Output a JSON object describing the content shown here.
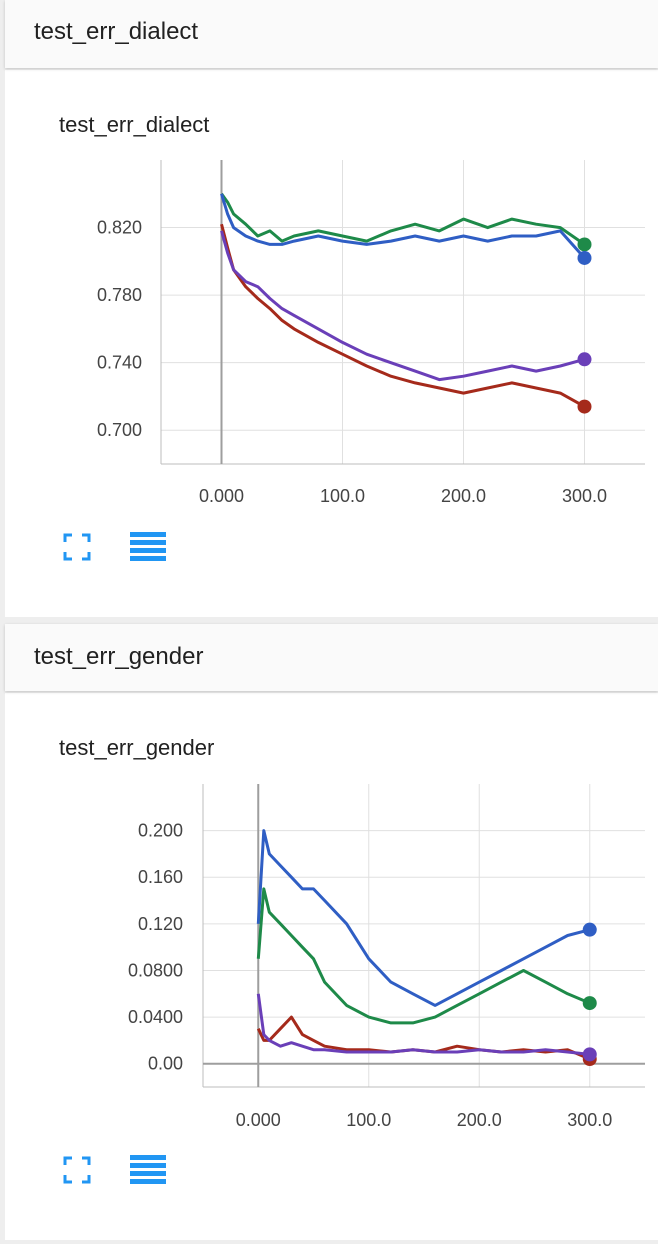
{
  "sections": [
    {
      "header": "test_err_dialect",
      "card_title": "test_err_dialect",
      "chart_data": {
        "type": "line",
        "title": "test_err_dialect",
        "xlim": [
          -50,
          350
        ],
        "ylim": [
          0.68,
          0.86
        ],
        "xticks": [
          0,
          100,
          200,
          300
        ],
        "xtick_labels": [
          "0.000",
          "100.0",
          "200.0",
          "300.0"
        ],
        "yticks": [
          0.7,
          0.74,
          0.78,
          0.82
        ],
        "ytick_labels": [
          "0.700",
          "0.740",
          "0.780",
          "0.820"
        ],
        "grid": true,
        "legend": "none",
        "series": [
          {
            "color": "#1e8a49",
            "x": [
              0,
              5,
              10,
              20,
              30,
              40,
              50,
              60,
              80,
              100,
              120,
              140,
              160,
              180,
              200,
              220,
              240,
              260,
              280,
              300
            ],
            "y": [
              0.84,
              0.835,
              0.828,
              0.822,
              0.815,
              0.818,
              0.812,
              0.815,
              0.818,
              0.815,
              0.812,
              0.818,
              0.822,
              0.818,
              0.825,
              0.82,
              0.825,
              0.822,
              0.82,
              0.81
            ],
            "end": 0.81
          },
          {
            "color": "#2f5ec4",
            "x": [
              0,
              5,
              10,
              20,
              30,
              40,
              50,
              60,
              80,
              100,
              120,
              140,
              160,
              180,
              200,
              220,
              240,
              260,
              280,
              300
            ],
            "y": [
              0.84,
              0.828,
              0.82,
              0.815,
              0.812,
              0.81,
              0.81,
              0.812,
              0.815,
              0.812,
              0.81,
              0.812,
              0.815,
              0.812,
              0.815,
              0.812,
              0.815,
              0.815,
              0.818,
              0.802
            ],
            "end": 0.802
          },
          {
            "color": "#a52a1b",
            "x": [
              0,
              5,
              10,
              20,
              30,
              40,
              50,
              60,
              80,
              100,
              120,
              140,
              160,
              180,
              200,
              220,
              240,
              260,
              280,
              300
            ],
            "y": [
              0.822,
              0.808,
              0.795,
              0.785,
              0.778,
              0.772,
              0.765,
              0.76,
              0.752,
              0.745,
              0.738,
              0.732,
              0.728,
              0.725,
              0.722,
              0.725,
              0.728,
              0.725,
              0.722,
              0.714
            ],
            "end": 0.714
          },
          {
            "color": "#6a3fb8",
            "x": [
              0,
              5,
              10,
              20,
              30,
              40,
              50,
              60,
              80,
              100,
              120,
              140,
              160,
              180,
              200,
              220,
              240,
              260,
              280,
              300
            ],
            "y": [
              0.818,
              0.805,
              0.795,
              0.788,
              0.785,
              0.778,
              0.772,
              0.768,
              0.76,
              0.752,
              0.745,
              0.74,
              0.735,
              0.73,
              0.732,
              0.735,
              0.738,
              0.735,
              0.738,
              0.742
            ],
            "end": 0.742
          }
        ]
      }
    },
    {
      "header": "test_err_gender",
      "card_title": "test_err_gender",
      "chart_data": {
        "type": "line",
        "title": "test_err_gender",
        "xlim": [
          -50,
          350
        ],
        "ylim": [
          -0.02,
          0.24
        ],
        "xticks": [
          0,
          100,
          200,
          300
        ],
        "xtick_labels": [
          "0.000",
          "100.0",
          "200.0",
          "300.0"
        ],
        "yticks": [
          0.0,
          0.04,
          0.08,
          0.12,
          0.16,
          0.2
        ],
        "ytick_labels": [
          "0.00",
          "0.0400",
          "0.0800",
          "0.120",
          "0.160",
          "0.200"
        ],
        "grid": true,
        "legend": "none",
        "series": [
          {
            "color": "#2f5ec4",
            "x": [
              0,
              5,
              10,
              20,
              30,
              40,
              50,
              60,
              80,
              100,
              120,
              140,
              160,
              180,
              200,
              220,
              240,
              260,
              280,
              300
            ],
            "y": [
              0.12,
              0.2,
              0.18,
              0.17,
              0.16,
              0.15,
              0.15,
              0.14,
              0.12,
              0.09,
              0.07,
              0.06,
              0.05,
              0.06,
              0.07,
              0.08,
              0.09,
              0.1,
              0.11,
              0.115
            ],
            "end": 0.115
          },
          {
            "color": "#1e8a49",
            "x": [
              0,
              5,
              10,
              20,
              30,
              40,
              50,
              60,
              80,
              100,
              120,
              140,
              160,
              180,
              200,
              220,
              240,
              260,
              280,
              300
            ],
            "y": [
              0.09,
              0.15,
              0.13,
              0.12,
              0.11,
              0.1,
              0.09,
              0.07,
              0.05,
              0.04,
              0.035,
              0.035,
              0.04,
              0.05,
              0.06,
              0.07,
              0.08,
              0.07,
              0.06,
              0.052
            ],
            "end": 0.052
          },
          {
            "color": "#a52a1b",
            "x": [
              0,
              5,
              10,
              20,
              30,
              40,
              50,
              60,
              80,
              100,
              120,
              140,
              160,
              180,
              200,
              220,
              240,
              260,
              280,
              300
            ],
            "y": [
              0.03,
              0.02,
              0.02,
              0.03,
              0.04,
              0.025,
              0.02,
              0.015,
              0.012,
              0.012,
              0.01,
              0.012,
              0.01,
              0.015,
              0.012,
              0.01,
              0.012,
              0.01,
              0.012,
              0.004
            ],
            "end": 0.004
          },
          {
            "color": "#6a3fb8",
            "x": [
              0,
              5,
              10,
              20,
              30,
              40,
              50,
              60,
              80,
              100,
              120,
              140,
              160,
              180,
              200,
              220,
              240,
              260,
              280,
              300
            ],
            "y": [
              0.06,
              0.025,
              0.02,
              0.015,
              0.018,
              0.015,
              0.012,
              0.012,
              0.01,
              0.01,
              0.01,
              0.012,
              0.01,
              0.01,
              0.012,
              0.01,
              0.01,
              0.012,
              0.01,
              0.008
            ],
            "end": 0.008
          }
        ]
      }
    }
  ],
  "icons": {
    "fullscreen": "fullscreen-icon",
    "data_table": "data-table-icon",
    "accent": "#2196f3"
  }
}
